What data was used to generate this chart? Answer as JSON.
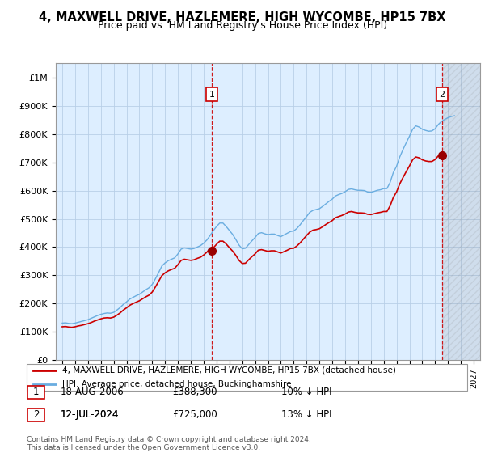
{
  "title": "4, MAXWELL DRIVE, HAZLEMERE, HIGH WYCOMBE, HP15 7BX",
  "subtitle": "Price paid vs. HM Land Registry's House Price Index (HPI)",
  "title_fontsize": 10.5,
  "subtitle_fontsize": 9,
  "bg_color": "#ffffff",
  "plot_bg_color": "#ddeeff",
  "grid_color": "#b8cfe8",
  "hpi_color": "#6aade0",
  "price_color": "#cc0000",
  "marker_color": "#990000",
  "ylim": [
    0,
    1050000
  ],
  "yticks": [
    0,
    100000,
    200000,
    300000,
    400000,
    500000,
    600000,
    700000,
    800000,
    900000,
    1000000
  ],
  "ytick_labels": [
    "£0",
    "£100K",
    "£200K",
    "£300K",
    "£400K",
    "£500K",
    "£600K",
    "£700K",
    "£800K",
    "£900K",
    "£1M"
  ],
  "transaction1": {
    "date": "18-AUG-2006",
    "price": 388300,
    "label": "1",
    "year": 2006.63,
    "pct": "10%",
    "dir": "↓"
  },
  "transaction2": {
    "date": "12-JUL-2024",
    "price": 725000,
    "label": "2",
    "year": 2024.53,
    "pct": "13%",
    "dir": "↓"
  },
  "legend_label_red": "4, MAXWELL DRIVE, HAZLEMERE, HIGH WYCOMBE, HP15 7BX (detached house)",
  "legend_label_blue": "HPI: Average price, detached house, Buckinghamshire",
  "footer": "Contains HM Land Registry data © Crown copyright and database right 2024.\nThis data is licensed under the Open Government Licence v3.0.",
  "hpi_data": [
    [
      1995.0,
      131000
    ],
    [
      1995.25,
      132000
    ],
    [
      1995.5,
      130000
    ],
    [
      1995.75,
      129000
    ],
    [
      1996.0,
      131000
    ],
    [
      1996.25,
      134000
    ],
    [
      1996.5,
      137000
    ],
    [
      1996.75,
      140000
    ],
    [
      1997.0,
      143000
    ],
    [
      1997.25,
      148000
    ],
    [
      1997.5,
      153000
    ],
    [
      1997.75,
      158000
    ],
    [
      1998.0,
      162000
    ],
    [
      1998.25,
      165000
    ],
    [
      1998.5,
      167000
    ],
    [
      1998.75,
      166000
    ],
    [
      1999.0,
      169000
    ],
    [
      1999.25,
      177000
    ],
    [
      1999.5,
      186000
    ],
    [
      1999.75,
      197000
    ],
    [
      2000.0,
      206000
    ],
    [
      2000.25,
      216000
    ],
    [
      2000.5,
      222000
    ],
    [
      2000.75,
      228000
    ],
    [
      2001.0,
      233000
    ],
    [
      2001.25,
      241000
    ],
    [
      2001.5,
      249000
    ],
    [
      2001.75,
      256000
    ],
    [
      2002.0,
      268000
    ],
    [
      2002.25,
      288000
    ],
    [
      2002.5,
      310000
    ],
    [
      2002.75,
      333000
    ],
    [
      2003.0,
      344000
    ],
    [
      2003.25,
      352000
    ],
    [
      2003.5,
      357000
    ],
    [
      2003.75,
      362000
    ],
    [
      2004.0,
      376000
    ],
    [
      2004.25,
      393000
    ],
    [
      2004.5,
      397000
    ],
    [
      2004.75,
      395000
    ],
    [
      2005.0,
      393000
    ],
    [
      2005.25,
      395000
    ],
    [
      2005.5,
      400000
    ],
    [
      2005.75,
      405000
    ],
    [
      2006.0,
      414000
    ],
    [
      2006.25,
      425000
    ],
    [
      2006.5,
      441000
    ],
    [
      2006.75,
      458000
    ],
    [
      2007.0,
      473000
    ],
    [
      2007.25,
      485000
    ],
    [
      2007.5,
      485000
    ],
    [
      2007.75,
      473000
    ],
    [
      2008.0,
      459000
    ],
    [
      2008.25,
      445000
    ],
    [
      2008.5,
      427000
    ],
    [
      2008.75,
      407000
    ],
    [
      2009.0,
      394000
    ],
    [
      2009.25,
      396000
    ],
    [
      2009.5,
      409000
    ],
    [
      2009.75,
      422000
    ],
    [
      2010.0,
      434000
    ],
    [
      2010.25,
      448000
    ],
    [
      2010.5,
      451000
    ],
    [
      2010.75,
      447000
    ],
    [
      2011.0,
      444000
    ],
    [
      2011.25,
      446000
    ],
    [
      2011.5,
      446000
    ],
    [
      2011.75,
      441000
    ],
    [
      2012.0,
      437000
    ],
    [
      2012.25,
      443000
    ],
    [
      2012.5,
      449000
    ],
    [
      2012.75,
      455000
    ],
    [
      2013.0,
      457000
    ],
    [
      2013.25,
      466000
    ],
    [
      2013.5,
      479000
    ],
    [
      2013.75,
      494000
    ],
    [
      2014.0,
      508000
    ],
    [
      2014.25,
      523000
    ],
    [
      2014.5,
      530000
    ],
    [
      2014.75,
      533000
    ],
    [
      2015.0,
      536000
    ],
    [
      2015.25,
      544000
    ],
    [
      2015.5,
      553000
    ],
    [
      2015.75,
      562000
    ],
    [
      2016.0,
      570000
    ],
    [
      2016.25,
      581000
    ],
    [
      2016.5,
      586000
    ],
    [
      2016.75,
      590000
    ],
    [
      2017.0,
      596000
    ],
    [
      2017.25,
      604000
    ],
    [
      2017.5,
      606000
    ],
    [
      2017.75,
      603000
    ],
    [
      2018.0,
      601000
    ],
    [
      2018.25,
      601000
    ],
    [
      2018.5,
      600000
    ],
    [
      2018.75,
      595000
    ],
    [
      2019.0,
      594000
    ],
    [
      2019.25,
      597000
    ],
    [
      2019.5,
      601000
    ],
    [
      2019.75,
      603000
    ],
    [
      2020.0,
      607000
    ],
    [
      2020.25,
      607000
    ],
    [
      2020.5,
      629000
    ],
    [
      2020.75,
      664000
    ],
    [
      2021.0,
      686000
    ],
    [
      2021.25,
      719000
    ],
    [
      2021.5,
      745000
    ],
    [
      2021.75,
      769000
    ],
    [
      2022.0,
      792000
    ],
    [
      2022.25,
      817000
    ],
    [
      2022.5,
      829000
    ],
    [
      2022.75,
      825000
    ],
    [
      2023.0,
      817000
    ],
    [
      2023.25,
      813000
    ],
    [
      2023.5,
      810000
    ],
    [
      2023.75,
      811000
    ],
    [
      2024.0,
      819000
    ],
    [
      2024.25,
      834000
    ],
    [
      2024.5,
      845000
    ],
    [
      2024.75,
      852000
    ],
    [
      2025.0,
      858000
    ],
    [
      2025.25,
      862000
    ],
    [
      2025.5,
      865000
    ]
  ],
  "price_hpi_data_before_t1": [
    [
      1995.0,
      118000
    ],
    [
      1995.25,
      119000
    ],
    [
      1995.5,
      117000
    ],
    [
      1995.75,
      116000
    ],
    [
      1996.0,
      118000
    ],
    [
      1996.25,
      121000
    ],
    [
      1996.5,
      123000
    ],
    [
      1996.75,
      126000
    ],
    [
      1997.0,
      129000
    ],
    [
      1997.25,
      133000
    ],
    [
      1997.5,
      138000
    ],
    [
      1997.75,
      142000
    ],
    [
      1998.0,
      146000
    ],
    [
      1998.25,
      149000
    ],
    [
      1998.5,
      150000
    ],
    [
      1998.75,
      149000
    ],
    [
      1999.0,
      152000
    ],
    [
      1999.25,
      159000
    ],
    [
      1999.5,
      167000
    ],
    [
      1999.75,
      177000
    ],
    [
      2000.0,
      185000
    ],
    [
      2000.25,
      194000
    ],
    [
      2000.5,
      200000
    ],
    [
      2000.75,
      205000
    ],
    [
      2001.0,
      210000
    ],
    [
      2001.25,
      217000
    ],
    [
      2001.5,
      224000
    ],
    [
      2001.75,
      230000
    ],
    [
      2002.0,
      241000
    ],
    [
      2002.25,
      259000
    ],
    [
      2002.5,
      279000
    ],
    [
      2002.75,
      299000
    ],
    [
      2003.0,
      309000
    ],
    [
      2003.25,
      316000
    ],
    [
      2003.5,
      321000
    ],
    [
      2003.75,
      325000
    ],
    [
      2004.0,
      338000
    ],
    [
      2004.25,
      353000
    ],
    [
      2004.5,
      357000
    ],
    [
      2004.75,
      355000
    ],
    [
      2005.0,
      353000
    ],
    [
      2005.25,
      355000
    ],
    [
      2005.5,
      360000
    ],
    [
      2005.75,
      364000
    ],
    [
      2006.0,
      372000
    ],
    [
      2006.25,
      382000
    ],
    [
      2006.5,
      396000
    ],
    [
      2006.63,
      388300
    ]
  ],
  "price_hpi_data_after_t1": [
    [
      2006.63,
      388300
    ],
    [
      2006.75,
      397000
    ],
    [
      2007.0,
      410000
    ],
    [
      2007.25,
      421000
    ],
    [
      2007.5,
      421000
    ],
    [
      2007.75,
      411000
    ],
    [
      2008.0,
      398000
    ],
    [
      2008.25,
      386000
    ],
    [
      2008.5,
      371000
    ],
    [
      2008.75,
      353000
    ],
    [
      2009.0,
      342000
    ],
    [
      2009.25,
      343000
    ],
    [
      2009.5,
      355000
    ],
    [
      2009.75,
      366000
    ],
    [
      2010.0,
      376000
    ],
    [
      2010.25,
      389000
    ],
    [
      2010.5,
      391000
    ],
    [
      2010.75,
      388000
    ],
    [
      2011.0,
      385000
    ],
    [
      2011.25,
      387000
    ],
    [
      2011.5,
      387000
    ],
    [
      2011.75,
      383000
    ],
    [
      2012.0,
      379000
    ],
    [
      2012.25,
      384000
    ],
    [
      2012.5,
      389000
    ],
    [
      2012.75,
      395000
    ],
    [
      2013.0,
      396000
    ],
    [
      2013.25,
      404000
    ],
    [
      2013.5,
      415000
    ],
    [
      2013.75,
      428000
    ],
    [
      2014.0,
      441000
    ],
    [
      2014.25,
      453000
    ],
    [
      2014.5,
      460000
    ],
    [
      2014.75,
      462000
    ],
    [
      2015.0,
      465000
    ],
    [
      2015.25,
      472000
    ],
    [
      2015.5,
      480000
    ],
    [
      2015.75,
      487000
    ],
    [
      2016.0,
      494000
    ],
    [
      2016.25,
      504000
    ],
    [
      2016.5,
      508000
    ],
    [
      2016.75,
      512000
    ],
    [
      2017.0,
      517000
    ],
    [
      2017.25,
      524000
    ],
    [
      2017.5,
      526000
    ],
    [
      2017.75,
      523000
    ],
    [
      2018.0,
      521000
    ],
    [
      2018.25,
      521000
    ],
    [
      2018.5,
      520000
    ],
    [
      2018.75,
      516000
    ],
    [
      2019.0,
      515000
    ],
    [
      2019.25,
      518000
    ],
    [
      2019.5,
      521000
    ],
    [
      2019.75,
      523000
    ],
    [
      2020.0,
      526000
    ],
    [
      2020.25,
      526000
    ],
    [
      2020.5,
      546000
    ],
    [
      2020.75,
      576000
    ],
    [
      2021.0,
      595000
    ],
    [
      2021.25,
      624000
    ],
    [
      2021.5,
      646000
    ],
    [
      2021.75,
      667000
    ],
    [
      2022.0,
      687000
    ],
    [
      2022.25,
      709000
    ],
    [
      2022.5,
      719000
    ],
    [
      2022.75,
      716000
    ],
    [
      2023.0,
      709000
    ],
    [
      2023.25,
      705000
    ],
    [
      2023.5,
      703000
    ],
    [
      2023.75,
      703000
    ],
    [
      2024.0,
      710000
    ],
    [
      2024.25,
      723000
    ],
    [
      2024.53,
      725000
    ]
  ]
}
